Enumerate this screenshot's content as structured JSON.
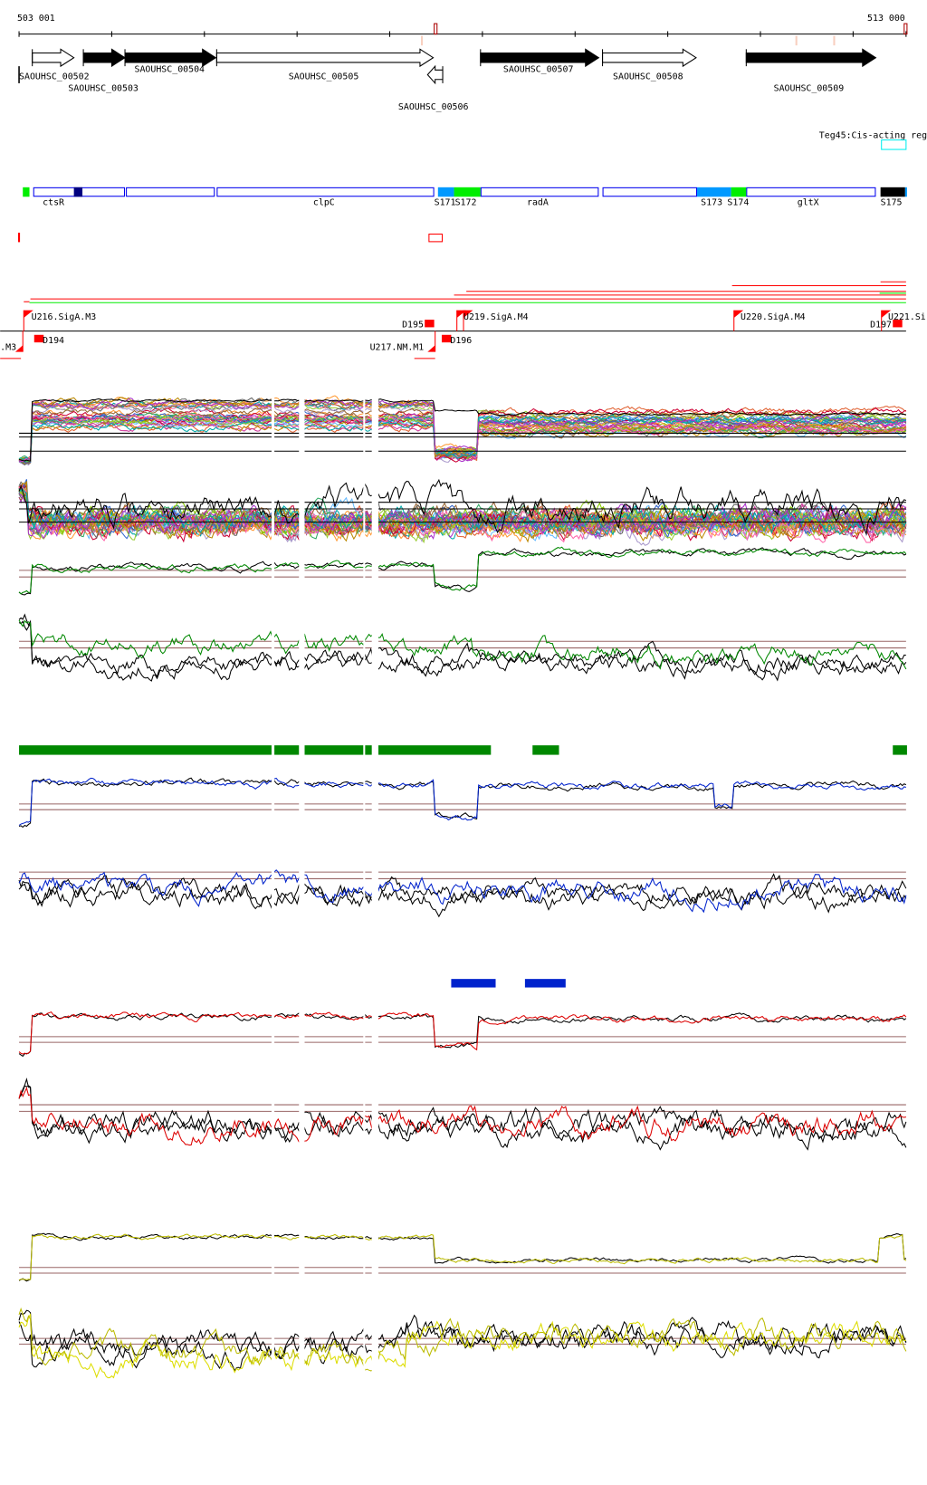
{
  "coordinates": {
    "start": "503 001",
    "end": "513 000"
  },
  "genes": [
    {
      "name": "SAOUHSC_00502",
      "strand": "+",
      "style": "open"
    },
    {
      "name": "SAOUHSC_00503",
      "strand": "+",
      "style": "filled"
    },
    {
      "name": "SAOUHSC_00504",
      "strand": "+",
      "style": "filled"
    },
    {
      "name": "SAOUHSC_00505",
      "strand": "+",
      "style": "open"
    },
    {
      "name": "SAOUHSC_00506",
      "strand": "-",
      "style": "open"
    },
    {
      "name": "SAOUHSC_00507",
      "strand": "+",
      "style": "filled"
    },
    {
      "name": "SAOUHSC_00508",
      "strand": "+",
      "style": "open"
    },
    {
      "name": "SAOUHSC_00509",
      "strand": "+",
      "style": "filled"
    }
  ],
  "regulatory": {
    "label": "Teg45:Cis-acting reg"
  },
  "features": {
    "labels": [
      "ctsR",
      "clpC",
      "S171",
      "S172",
      "radA",
      "S173",
      "S174",
      "gltX",
      "S175"
    ]
  },
  "promoters": {
    "labels": [
      "U216.SigA.M3",
      "U219.SigA.M4",
      "U220.SigA.M4",
      "U221.Si",
      "D195",
      "D197",
      "D194",
      "D196",
      "U217.NM.M1",
      ".M3"
    ]
  },
  "colors": {
    "feature_outline": "#0000ee",
    "feature_navy": "#000080",
    "feature_lightblue": "#0099ff",
    "feature_green": "#00ee00",
    "promoter_red": "#ff0000",
    "green_track": "#008800",
    "blue_track": "#0022cc",
    "red_track": "#dd0000",
    "yellow_track": "#dddd00",
    "threshold": "#996666",
    "regulatory_box": "#00eeee"
  }
}
